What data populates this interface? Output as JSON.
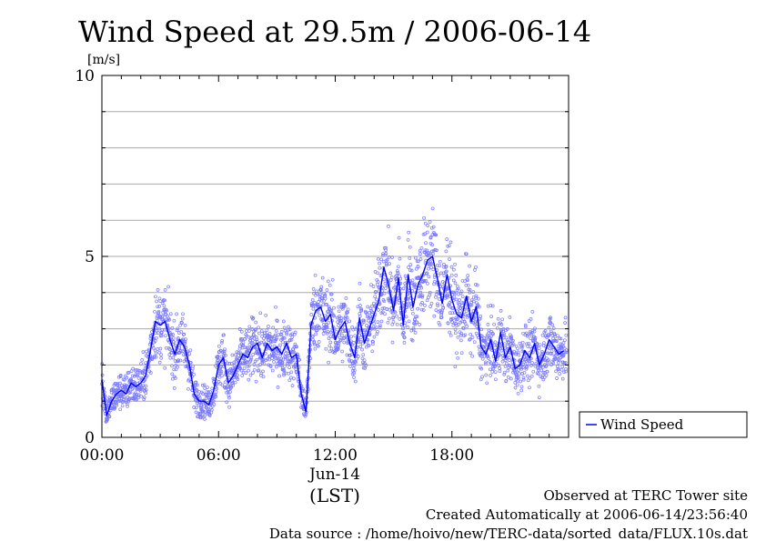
{
  "chart_data": {
    "type": "scatter",
    "title": "Wind Speed at 29.5m / 2006-06-14",
    "ylabel": "[m/s]",
    "xlabel": "(LST)",
    "date_label": "Jun-14",
    "x_units": "hours LST",
    "xlim": [
      0,
      24
    ],
    "ylim": [
      0,
      10
    ],
    "x_ticks": [
      {
        "value": 0,
        "label": "00:00"
      },
      {
        "value": 6,
        "label": "06:00"
      },
      {
        "value": 12,
        "label": "12:00"
      },
      {
        "value": 18,
        "label": "18:00"
      }
    ],
    "y_ticks": [
      {
        "value": 0,
        "label": "0"
      },
      {
        "value": 5,
        "label": "5"
      },
      {
        "value": 10,
        "label": "10"
      }
    ],
    "grid": true,
    "legend": {
      "position": "bottom-right, outside plot",
      "entries": [
        "Wind Speed"
      ]
    },
    "series": [
      {
        "name": "Wind Speed",
        "style": "line with scattered raw samples",
        "color": "#0000ff",
        "scatter_color": "#7777ff",
        "x": [
          0.0,
          0.25,
          0.5,
          0.75,
          1.0,
          1.25,
          1.5,
          1.75,
          2.0,
          2.25,
          2.5,
          2.75,
          3.0,
          3.25,
          3.5,
          3.75,
          4.0,
          4.25,
          4.5,
          4.75,
          5.0,
          5.25,
          5.5,
          5.75,
          6.0,
          6.25,
          6.5,
          6.75,
          7.0,
          7.25,
          7.5,
          7.75,
          8.0,
          8.25,
          8.5,
          8.75,
          9.0,
          9.25,
          9.5,
          9.75,
          10.0,
          10.25,
          10.5,
          10.75,
          11.0,
          11.25,
          11.5,
          11.75,
          12.0,
          12.25,
          12.5,
          12.75,
          13.0,
          13.25,
          13.5,
          13.75,
          14.0,
          14.25,
          14.5,
          14.75,
          15.0,
          15.25,
          15.5,
          15.75,
          16.0,
          16.25,
          16.5,
          16.75,
          17.0,
          17.25,
          17.5,
          17.75,
          18.0,
          18.25,
          18.5,
          18.75,
          19.0,
          19.25,
          19.5,
          19.75,
          20.0,
          20.25,
          20.5,
          20.75,
          21.0,
          21.25,
          21.5,
          21.75,
          22.0,
          22.25,
          22.5,
          22.75,
          23.0,
          23.25,
          23.5,
          23.75
        ],
        "values": [
          1.6,
          0.6,
          1.0,
          1.2,
          1.3,
          1.2,
          1.5,
          1.4,
          1.5,
          1.7,
          2.4,
          3.2,
          3.1,
          3.2,
          2.7,
          2.3,
          2.7,
          2.5,
          2.0,
          1.2,
          1.0,
          1.0,
          0.9,
          1.3,
          2.0,
          2.2,
          1.5,
          1.7,
          2.0,
          2.3,
          2.2,
          2.5,
          2.6,
          2.2,
          2.6,
          2.4,
          2.5,
          2.3,
          2.6,
          2.2,
          2.3,
          1.2,
          0.7,
          3.1,
          3.5,
          3.6,
          3.2,
          3.4,
          2.7,
          3.0,
          3.2,
          2.6,
          2.2,
          3.3,
          2.6,
          3.0,
          3.4,
          3.8,
          4.7,
          4.2,
          3.5,
          4.4,
          3.1,
          4.5,
          3.6,
          4.2,
          4.5,
          4.9,
          5.0,
          4.4,
          3.7,
          4.5,
          3.8,
          3.4,
          3.3,
          3.9,
          3.2,
          3.6,
          2.5,
          2.3,
          2.7,
          2.1,
          2.9,
          2.2,
          2.5,
          1.9,
          2.0,
          2.4,
          2.2,
          2.6,
          2.0,
          2.3,
          2.7,
          2.5,
          2.3,
          2.4
        ]
      }
    ]
  },
  "footer": {
    "line1": "Observed at TERC Tower site",
    "line2": "Created Automatically at 2006-06-14/23:56:40",
    "line3": "Data source : /home/hoivo/new/TERC-data/sorted_data/FLUX.10s.dat"
  }
}
